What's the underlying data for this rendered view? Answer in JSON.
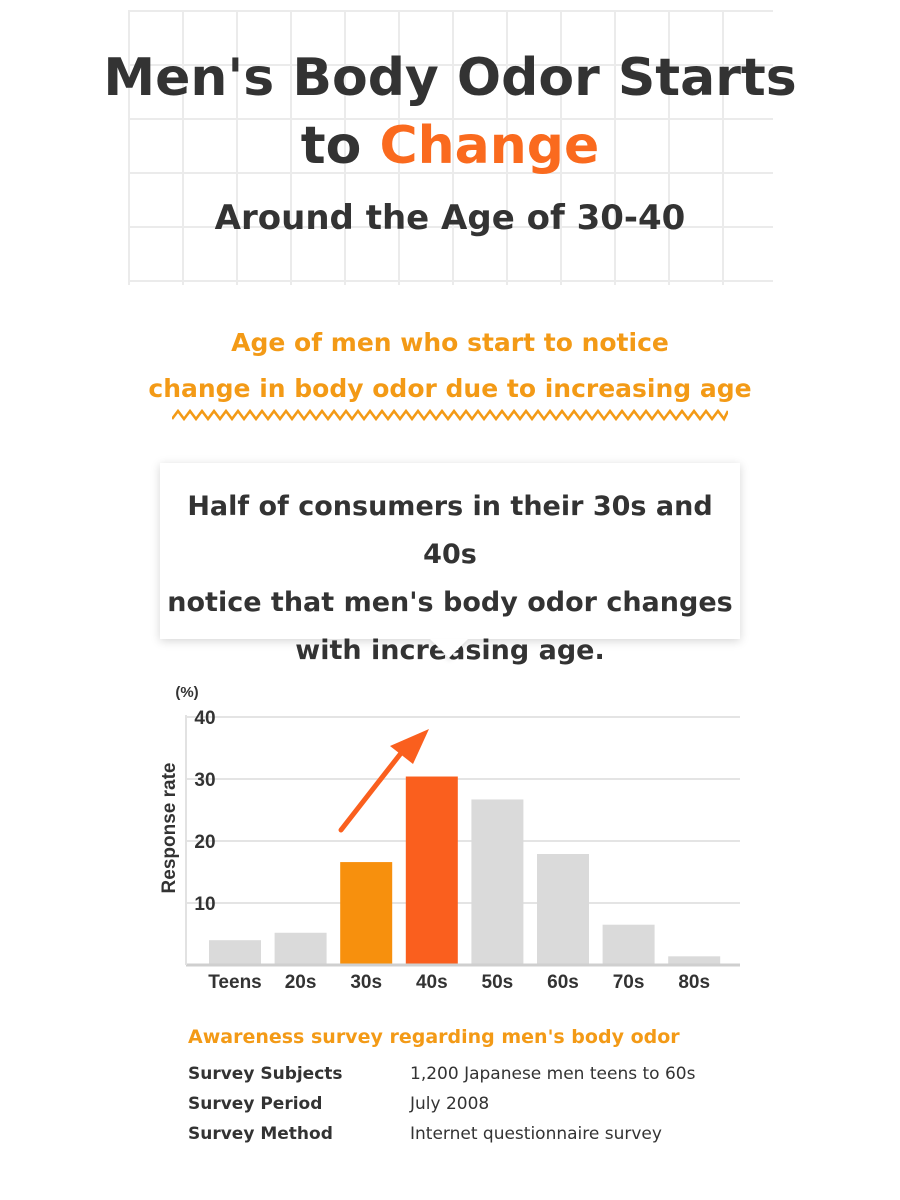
{
  "header": {
    "title_line1": "Men's Body Odor Starts",
    "title_line2_prefix": "to ",
    "title_line2_highlight": "Change",
    "title_line3": "Around the Age of 30-40"
  },
  "subtitle": {
    "line1": "Age of men who start to notice",
    "line2": "change in body odor due to increasing age"
  },
  "callout": {
    "line1": "Half of consumers in their 30s and 40s",
    "line2": "notice that men's body odor changes",
    "line3": "with increasing age."
  },
  "chart_data": {
    "type": "bar",
    "categories": [
      "Teens",
      "20s",
      "30s",
      "40s",
      "50s",
      "60s",
      "70s",
      "80s"
    ],
    "values": [
      4,
      5.2,
      16.6,
      30.4,
      26.7,
      17.9,
      6.5,
      1.4
    ],
    "highlight": {
      "30s": "#f7900d",
      "40s": "#fa5f1e"
    },
    "default_color": "#dadada",
    "ylabel": "Response rate",
    "yunit": "(%)",
    "yticks": [
      10,
      20,
      30,
      40
    ],
    "ylim": [
      0,
      40
    ],
    "annotation": "upward-arrow"
  },
  "survey": {
    "title": "Awareness survey regarding men's body odor",
    "rows": [
      {
        "label": "Survey Subjects",
        "value": "1,200 Japanese men teens to 60s"
      },
      {
        "label": "Survey Period",
        "value": "July 2008"
      },
      {
        "label": "Survey Method",
        "value": "Internet questionnaire survey"
      }
    ]
  },
  "colors": {
    "accent_orange": "#fa6a1e",
    "accent_yellow": "#f39a16",
    "text": "#333333"
  }
}
